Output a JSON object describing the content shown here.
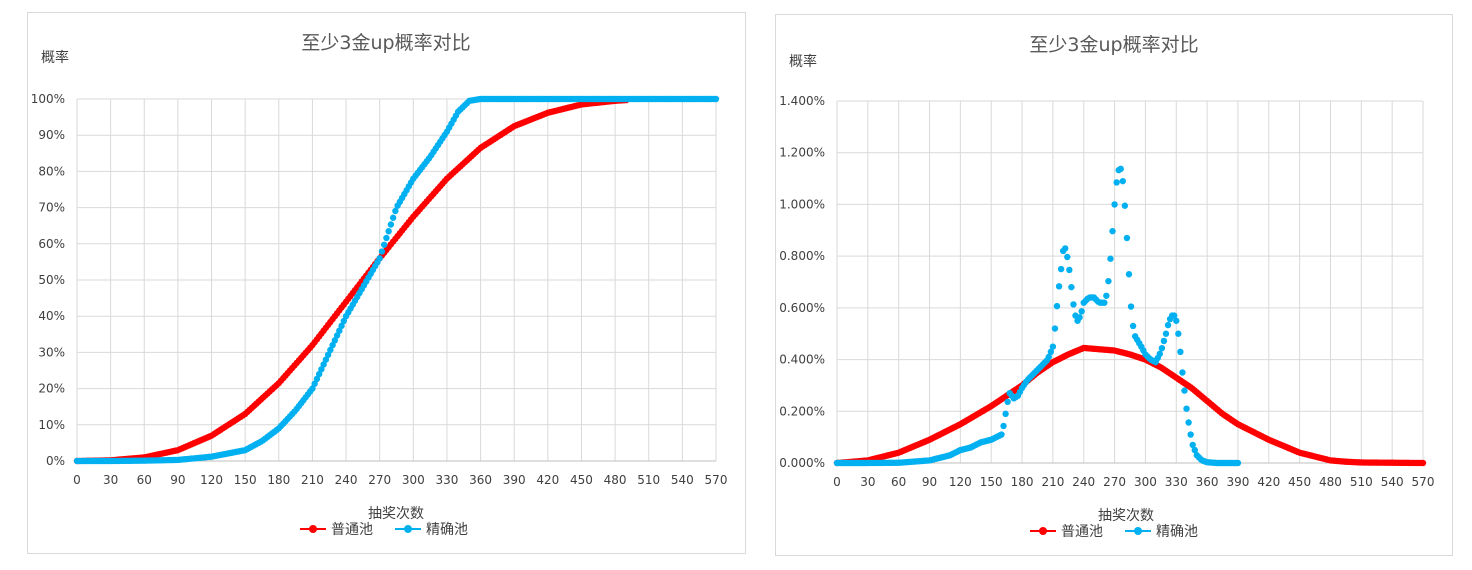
{
  "colors": {
    "series_a": "#ff0000",
    "series_b": "#00b0f0",
    "grid": "#d9d9d9"
  },
  "chart_data": [
    {
      "type": "line",
      "title": "至少3金up概率对比",
      "ylabel": "概率",
      "xlabel": "抽奖次数",
      "xlim": [
        0,
        570
      ],
      "ylim": [
        0,
        1
      ],
      "x_ticks": [
        "0",
        "30",
        "60",
        "90",
        "120",
        "150",
        "180",
        "210",
        "240",
        "270",
        "300",
        "330",
        "360",
        "390",
        "420",
        "450",
        "480",
        "510",
        "540",
        "570"
      ],
      "y_ticks": [
        "0%",
        "10%",
        "20%",
        "30%",
        "40%",
        "50%",
        "60%",
        "70%",
        "80%",
        "90%",
        "100%"
      ],
      "grid": true,
      "legend_position": "bottom",
      "series": [
        {
          "name": "普通池",
          "color": "#ff0000",
          "x": [
            0,
            30,
            60,
            90,
            120,
            150,
            180,
            210,
            240,
            270,
            300,
            330,
            360,
            390,
            420,
            450,
            480,
            490
          ],
          "y": [
            0,
            0.002,
            0.01,
            0.03,
            0.07,
            0.13,
            0.215,
            0.32,
            0.44,
            0.56,
            0.675,
            0.78,
            0.865,
            0.925,
            0.962,
            0.985,
            0.995,
            0.997
          ]
        },
        {
          "name": "精确池",
          "color": "#00b0f0",
          "x": [
            0,
            30,
            60,
            90,
            120,
            150,
            165,
            180,
            195,
            210,
            225,
            240,
            255,
            270,
            285,
            300,
            315,
            330,
            340,
            350,
            360,
            390,
            420,
            450,
            480,
            510,
            540,
            570
          ],
          "y": [
            0,
            0,
            0.001,
            0.003,
            0.012,
            0.03,
            0.055,
            0.09,
            0.14,
            0.2,
            0.3,
            0.4,
            0.48,
            0.56,
            0.7,
            0.78,
            0.84,
            0.91,
            0.965,
            0.995,
            1,
            1,
            1,
            1,
            1,
            1,
            1,
            1
          ]
        }
      ]
    },
    {
      "type": "line",
      "title": "至少3金up概率对比",
      "ylabel": "概率",
      "xlabel": "抽奖次数",
      "xlim": [
        0,
        570
      ],
      "ylim": [
        0,
        0.014
      ],
      "x_ticks": [
        "0",
        "30",
        "60",
        "90",
        "120",
        "150",
        "180",
        "210",
        "240",
        "270",
        "300",
        "330",
        "360",
        "390",
        "420",
        "450",
        "480",
        "510",
        "540",
        "570"
      ],
      "y_ticks": [
        "0.000%",
        "0.200%",
        "0.400%",
        "0.600%",
        "0.800%",
        "1.000%",
        "1.200%",
        "1.400%"
      ],
      "grid": true,
      "legend_position": "bottom",
      "series": [
        {
          "name": "普通池",
          "color": "#ff0000",
          "x": [
            0,
            30,
            60,
            90,
            105,
            120,
            150,
            165,
            180,
            195,
            210,
            225,
            240,
            255,
            270,
            285,
            300,
            315,
            330,
            345,
            360,
            375,
            390,
            420,
            450,
            480,
            495,
            510,
            540,
            570
          ],
          "y": [
            0,
            0.0001,
            0.0004,
            0.0009,
            0.0012,
            0.0015,
            0.0022,
            0.0026,
            0.003,
            0.0035,
            0.0039,
            0.0042,
            0.00445,
            0.0044,
            0.00435,
            0.0042,
            0.004,
            0.0037,
            0.0033,
            0.0029,
            0.0024,
            0.0019,
            0.0015,
            0.0009,
            0.0004,
            0.0001,
            5e-05,
            2e-05,
            1e-05,
            0
          ]
        },
        {
          "name": "精确池",
          "color": "#00b0f0",
          "x": [
            0,
            30,
            60,
            90,
            100,
            105,
            110,
            120,
            130,
            140,
            150,
            160,
            163,
            165,
            168,
            172,
            176,
            180,
            185,
            190,
            195,
            200,
            205,
            210,
            212,
            215,
            218,
            220,
            222,
            225,
            228,
            231,
            234,
            237,
            240,
            245,
            250,
            255,
            260,
            263,
            266,
            269,
            271,
            273,
            275,
            277,
            279,
            281,
            283,
            285,
            287,
            290,
            293,
            296,
            300,
            305,
            310,
            315,
            320,
            323,
            326,
            328,
            330,
            332,
            334,
            336,
            338,
            340,
            343,
            346,
            350,
            355,
            360,
            370,
            380,
            390
          ],
          "y": [
            0,
            0,
            1e-05,
            0.0001,
            0.0002,
            0.00025,
            0.0003,
            0.0005,
            0.0006,
            0.0008,
            0.0009,
            0.0011,
            0.0016,
            0.0022,
            0.0027,
            0.0025,
            0.0026,
            0.0029,
            0.0032,
            0.0034,
            0.0036,
            0.0038,
            0.004,
            0.0045,
            0.0052,
            0.0065,
            0.0075,
            0.0082,
            0.0083,
            0.0078,
            0.0068,
            0.0058,
            0.0055,
            0.0057,
            0.0062,
            0.0064,
            0.0064,
            0.0062,
            0.0062,
            0.0066,
            0.0079,
            0.0095,
            0.0105,
            0.0112,
            0.01145,
            0.0113,
            0.0105,
            0.0094,
            0.008,
            0.0066,
            0.0055,
            0.0049,
            0.0047,
            0.0045,
            0.0042,
            0.004,
            0.0039,
            0.0043,
            0.005,
            0.0055,
            0.0057,
            0.0057,
            0.0055,
            0.005,
            0.0043,
            0.0035,
            0.0028,
            0.0021,
            0.0013,
            0.0007,
            0.0003,
            0.0001,
            3e-05,
            0,
            0,
            0
          ]
        }
      ]
    }
  ]
}
